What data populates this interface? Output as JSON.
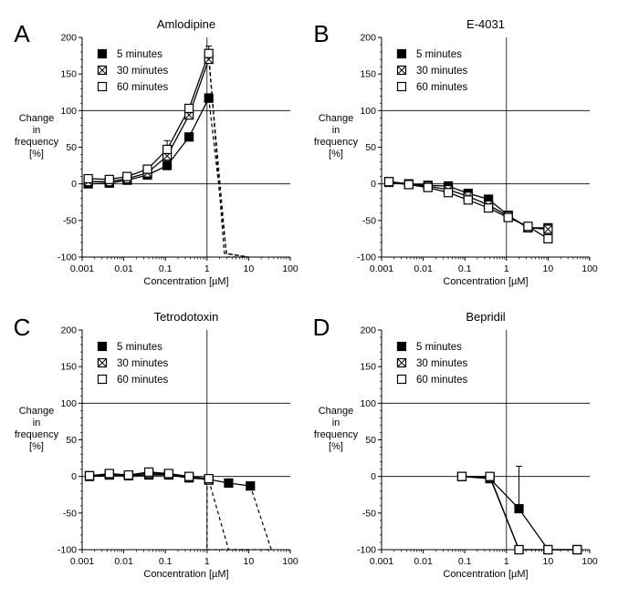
{
  "chart_data": [
    {
      "type": "line",
      "panel": "A",
      "title": "Amlodipine",
      "xlabel": "Concentration [µM]",
      "ylabel": [
        "Change",
        "in",
        "frequency",
        "[%]"
      ],
      "xscale": "log",
      "xlim": [
        0.001,
        100
      ],
      "ylim": [
        -100,
        200
      ],
      "xticks": [
        "0.001",
        "0.01",
        "0.1",
        "1",
        "10",
        "100"
      ],
      "yticks": [
        "-100",
        "-50",
        "0",
        "50",
        "100",
        "150",
        "200"
      ],
      "legend": {
        "position": "top-left",
        "entries": [
          "5 minutes",
          "30 minutes",
          "60 minutes"
        ]
      },
      "series": [
        {
          "name": "5 minutes",
          "marker": "filled-square",
          "x": [
            0.0014,
            0.0045,
            0.012,
            0.037,
            0.11,
            0.37,
            1.1
          ],
          "y": [
            0,
            1,
            5,
            12,
            25,
            64,
            117
          ],
          "err": [
            0,
            0,
            0,
            3,
            3,
            3,
            6
          ],
          "dashed": [
            [
              1.1,
              117
            ],
            [
              3.0,
              -100
            ],
            [
              10,
              -100
            ]
          ]
        },
        {
          "name": "30 minutes",
          "marker": "crossed-square",
          "x": [
            0.0014,
            0.0045,
            0.012,
            0.037,
            0.11,
            0.37,
            1.1
          ],
          "y": [
            3,
            3,
            7,
            15,
            38,
            94,
            170
          ],
          "err": [
            0,
            0,
            0,
            0,
            4,
            4,
            5
          ],
          "dashed": [
            [
              1.1,
              170
            ],
            [
              2.9,
              -95
            ],
            [
              10,
              -100
            ]
          ]
        },
        {
          "name": "60 minutes",
          "marker": "open-square",
          "x": [
            0.0014,
            0.0045,
            0.012,
            0.037,
            0.11,
            0.37,
            1.1
          ],
          "y": [
            7,
            6,
            10,
            20,
            47,
            103,
            178
          ],
          "err": [
            0,
            0,
            3,
            3,
            12,
            4,
            10
          ],
          "dashed": [
            [
              1.1,
              178
            ],
            [
              2.6,
              -95
            ],
            [
              10,
              -100
            ]
          ]
        }
      ]
    },
    {
      "type": "line",
      "panel": "B",
      "title": "E-4031",
      "xlabel": "Concentration [µM]",
      "ylabel": [
        "Change",
        "in",
        "frequency",
        "[%]"
      ],
      "xscale": "log",
      "xlim": [
        0.001,
        100
      ],
      "ylim": [
        -100,
        200
      ],
      "xticks": [
        "0.001",
        "0.01",
        "0.1",
        "1",
        "10",
        "100"
      ],
      "yticks": [
        "-100",
        "-50",
        "0",
        "50",
        "100",
        "150",
        "200"
      ],
      "legend": {
        "position": "top-left",
        "entries": [
          "5 minutes",
          "30 minutes",
          "60 minutes"
        ]
      },
      "series": [
        {
          "name": "5 minutes",
          "marker": "filled-square",
          "x": [
            0.0015,
            0.0045,
            0.013,
            0.04,
            0.12,
            0.37,
            1.1,
            3.3,
            10
          ],
          "y": [
            3,
            0,
            -2,
            -3,
            -13,
            -21,
            -43,
            -60,
            -60
          ],
          "err": [
            0,
            0,
            0,
            0,
            0,
            4,
            0,
            3,
            4
          ]
        },
        {
          "name": "30 minutes",
          "marker": "crossed-square",
          "x": [
            0.0015,
            0.0045,
            0.013,
            0.04,
            0.12,
            0.37,
            1.1,
            3.3,
            10
          ],
          "y": [
            2,
            -1,
            -3,
            -8,
            -17,
            -29,
            -44,
            -60,
            -62
          ],
          "err": [
            0,
            0,
            0,
            0,
            0,
            0,
            0,
            0,
            0
          ]
        },
        {
          "name": "60 minutes",
          "marker": "open-square",
          "x": [
            0.0015,
            0.0045,
            0.013,
            0.04,
            0.12,
            0.37,
            1.1,
            3.3,
            10
          ],
          "y": [
            3,
            -1,
            -5,
            -12,
            -22,
            -33,
            -46,
            -58,
            -75
          ],
          "err": [
            0,
            0,
            3,
            0,
            0,
            3,
            0,
            3,
            0
          ]
        }
      ]
    },
    {
      "type": "line",
      "panel": "C",
      "title": "Tetrodotoxin",
      "xlabel": "Concentration [µM]",
      "ylabel": [
        "Change",
        "in",
        "frequency",
        "[%]"
      ],
      "xscale": "log",
      "xlim": [
        0.001,
        100
      ],
      "ylim": [
        -100,
        200
      ],
      "xticks": [
        "0.001",
        "0.01",
        "0.1",
        "1",
        "10",
        "100"
      ],
      "yticks": [
        "-100",
        "-50",
        "0",
        "50",
        "100",
        "150",
        "200"
      ],
      "legend": {
        "position": "top-left",
        "entries": [
          "5 minutes",
          "30 minutes",
          "60 minutes"
        ]
      },
      "series": [
        {
          "name": "5 minutes",
          "marker": "filled-square",
          "x": [
            0.0015,
            0.0045,
            0.013,
            0.04,
            0.12,
            0.37,
            1.1,
            3.3,
            11
          ],
          "y": [
            0,
            2,
            1,
            2,
            2,
            -2,
            -4,
            -9,
            -13
          ],
          "err": [
            0,
            0,
            0,
            0,
            0,
            0,
            0,
            0,
            0
          ]
        },
        {
          "name": "30 minutes",
          "marker": "crossed-square",
          "x": [
            0.0015,
            0.0045,
            0.013,
            0.04,
            0.12,
            0.37,
            1.1
          ],
          "y": [
            1,
            3,
            2,
            4,
            3,
            0,
            -5
          ],
          "err": [
            0,
            0,
            0,
            0,
            0,
            0,
            0
          ],
          "dashed": [
            [
              1.1,
              -5
            ],
            [
              3.3,
              -100
            ],
            [
              10,
              -100
            ]
          ]
        },
        {
          "name": "60 minutes",
          "marker": "open-square",
          "x": [
            0.0015,
            0.0045,
            0.013,
            0.04,
            0.12,
            0.37,
            1.1
          ],
          "y": [
            1,
            4,
            2,
            6,
            4,
            0,
            -3
          ],
          "err": [
            0,
            0,
            0,
            3,
            0,
            0,
            4
          ],
          "dashed": [
            [
              1.0,
              -5
            ],
            [
              1.0,
              -100
            ],
            [
              35,
              -100
            ],
            [
              11,
              -13
            ]
          ]
        }
      ]
    },
    {
      "type": "line",
      "panel": "D",
      "title": "Bepridil",
      "xlabel": "Concentration [µM]",
      "ylabel": [
        "Change",
        "in",
        "frequency",
        "[%]"
      ],
      "xscale": "log",
      "xlim": [
        0.001,
        100
      ],
      "ylim": [
        -100,
        200
      ],
      "xticks": [
        "0.001",
        "0.01",
        "0.1",
        "1",
        "10",
        "100"
      ],
      "yticks": [
        "-100",
        "-50",
        "0",
        "50",
        "100",
        "150",
        "200"
      ],
      "legend": {
        "position": "top-left",
        "entries": [
          "5 minutes",
          "30 minutes",
          "60 minutes"
        ]
      },
      "series": [
        {
          "name": "5 minutes",
          "marker": "filled-square",
          "x": [
            0.085,
            0.4,
            2,
            10,
            50
          ],
          "y": [
            0,
            -3,
            -44,
            -100,
            -100
          ],
          "err": [
            0,
            0,
            58,
            0,
            0
          ]
        },
        {
          "name": "30 minutes",
          "marker": "crossed-square",
          "x": [
            0.085,
            0.4,
            2,
            10,
            50
          ],
          "y": [
            0,
            -1,
            -100,
            -100,
            -100
          ],
          "err": [
            0,
            0,
            0,
            0,
            0
          ]
        },
        {
          "name": "60 minutes",
          "marker": "open-square",
          "x": [
            0.085,
            0.4,
            2,
            10,
            50
          ],
          "y": [
            0,
            0,
            -100,
            -100,
            -100
          ],
          "err": [
            0,
            0,
            0,
            0,
            0
          ]
        }
      ]
    }
  ]
}
